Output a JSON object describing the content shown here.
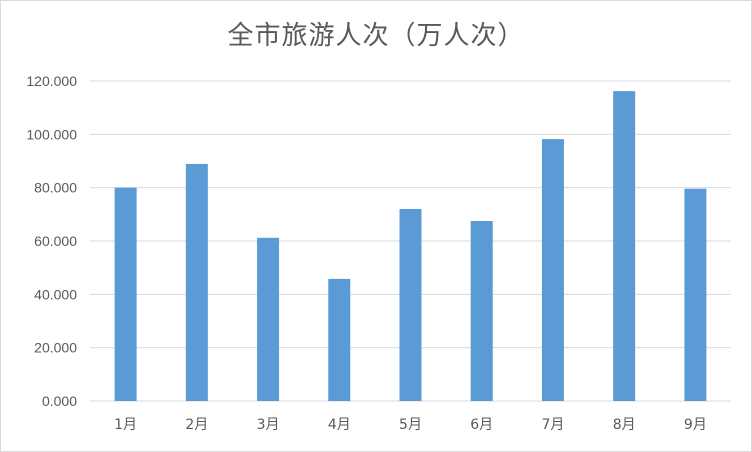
{
  "chart_data": {
    "type": "bar",
    "title": "全市旅游人次（万人次）",
    "categories": [
      "1月",
      "2月",
      "3月",
      "4月",
      "5月",
      "6月",
      "7月",
      "8月",
      "9月"
    ],
    "series": [
      {
        "values": [
          80.0,
          88.9,
          61.2,
          45.8,
          72.0,
          67.5,
          98.2,
          116.2,
          79.6
        ]
      }
    ],
    "ylim": [
      0,
      120
    ],
    "yticks": [
      "0.000",
      "20.000",
      "40.000",
      "60.000",
      "80.000",
      "100.000",
      "120.000"
    ],
    "grid": true,
    "bar_color": "#5b9bd5",
    "grid_color": "#d9d9d9"
  }
}
